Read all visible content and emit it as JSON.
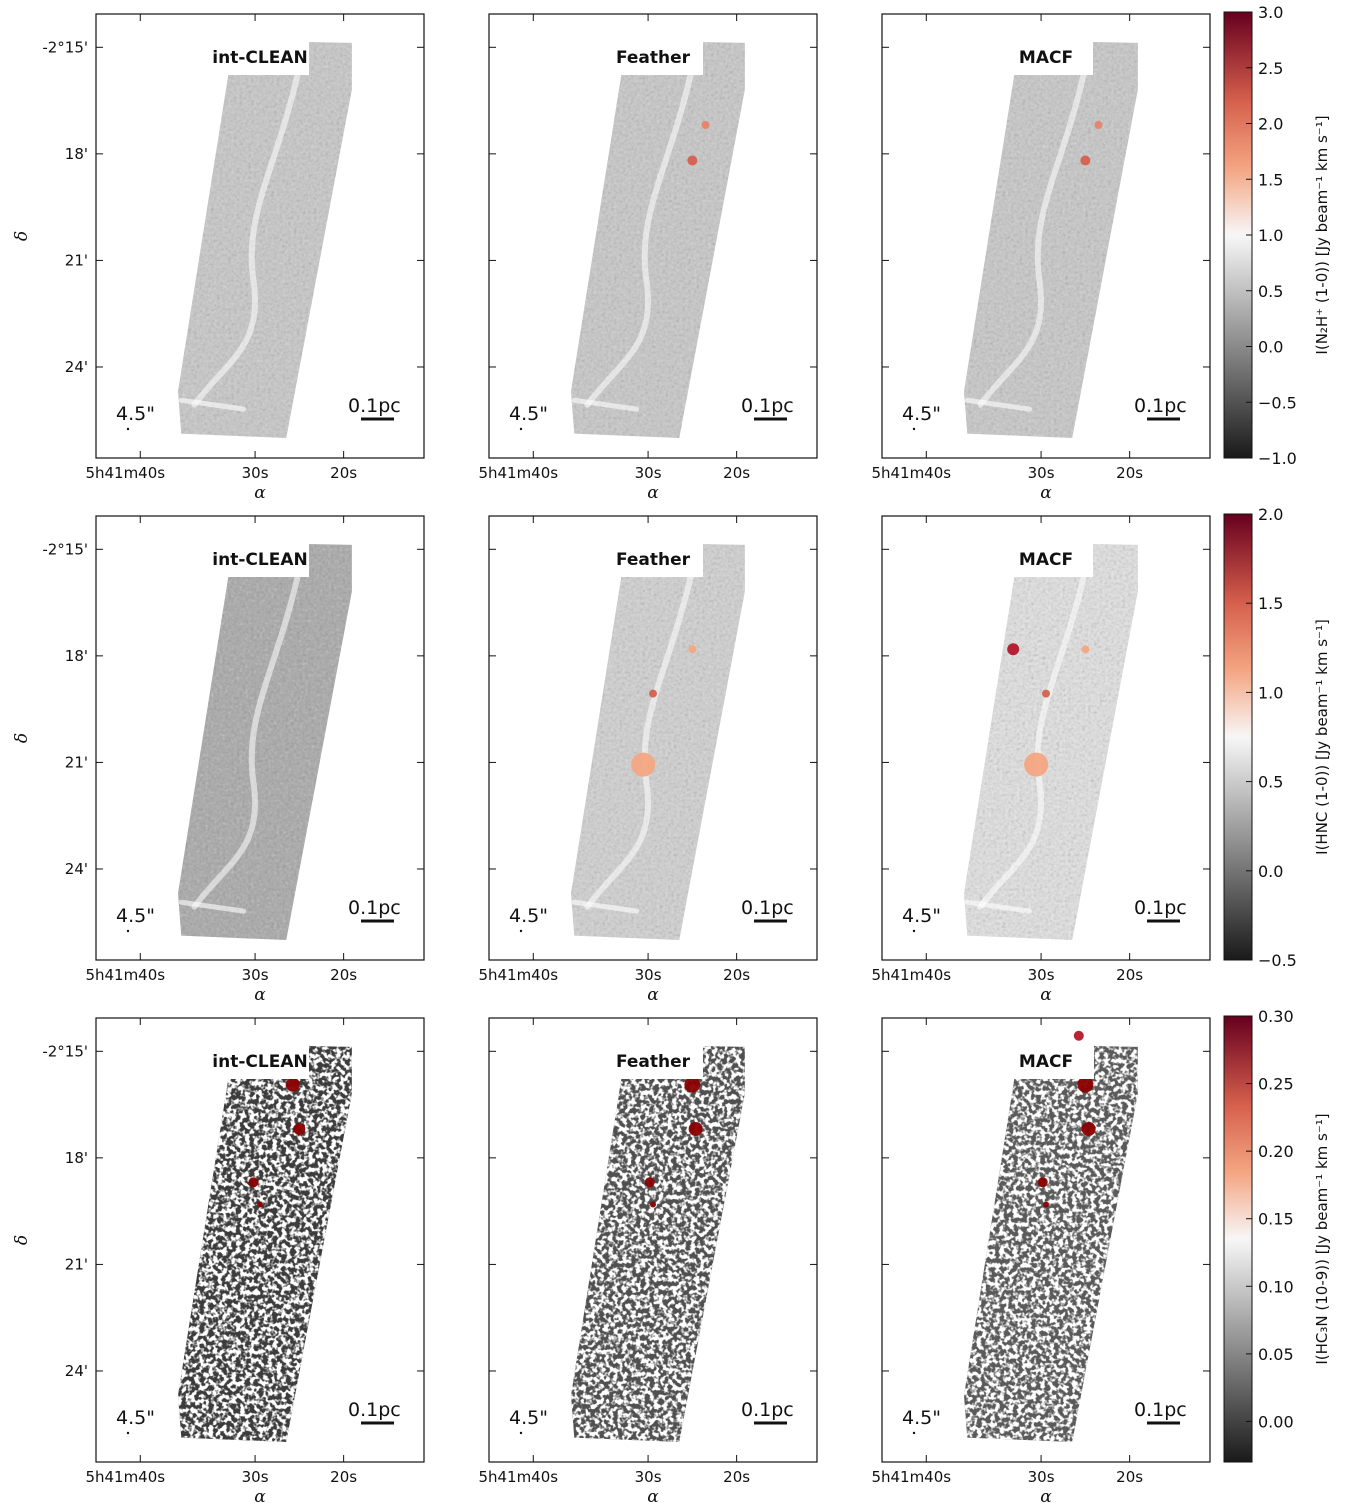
{
  "chart_data": {
    "type": "heatmap",
    "columns": [
      "int-CLEAN",
      "Feather",
      "MACF"
    ],
    "xlabel": "α",
    "ylabel": "δ",
    "x_ticks": [
      "5h41m40s",
      "30s",
      "20s"
    ],
    "y_ticks": [
      "-2°15'",
      "18'",
      "21'",
      "24'"
    ],
    "beam_label": "4.5\"",
    "scalebar_label": "0.1pc",
    "colormap": [
      "#1a1a1a",
      "#888888",
      "#f5f5f5",
      "#f4a582",
      "#d6604d",
      "#67001f"
    ],
    "rows": [
      {
        "colorbar_label": "I(N₂H⁺ (1-0)) [Jy beam⁻¹ km s⁻¹]",
        "range": [
          -1.0,
          3.0
        ],
        "ticks": [
          "3.0",
          "2.5",
          "2.0",
          "1.5",
          "1.0",
          "0.5",
          "0.0",
          "−0.5",
          "−1.0"
        ],
        "tick_values": [
          3.0,
          2.5,
          2.0,
          1.5,
          1.0,
          0.5,
          0.0,
          -0.5,
          -1.0
        ]
      },
      {
        "colorbar_label": "I(HNC (1-0)) [Jy beam⁻¹ km s⁻¹]",
        "range": [
          -0.5,
          2.0
        ],
        "ticks": [
          "2.0",
          "1.5",
          "1.0",
          "0.5",
          "0.0",
          "−0.5"
        ],
        "tick_values": [
          2.0,
          1.5,
          1.0,
          0.5,
          0.0,
          -0.5
        ]
      },
      {
        "colorbar_label": "I(HC₃N (10-9)) [Jy beam⁻¹ km s⁻¹]",
        "range": [
          -0.03,
          0.3
        ],
        "ticks": [
          "0.30",
          "0.25",
          "0.20",
          "0.15",
          "0.10",
          "0.05",
          "0.00"
        ],
        "tick_values": [
          0.3,
          0.25,
          0.2,
          0.15,
          0.1,
          0.05,
          0.0
        ]
      }
    ]
  }
}
